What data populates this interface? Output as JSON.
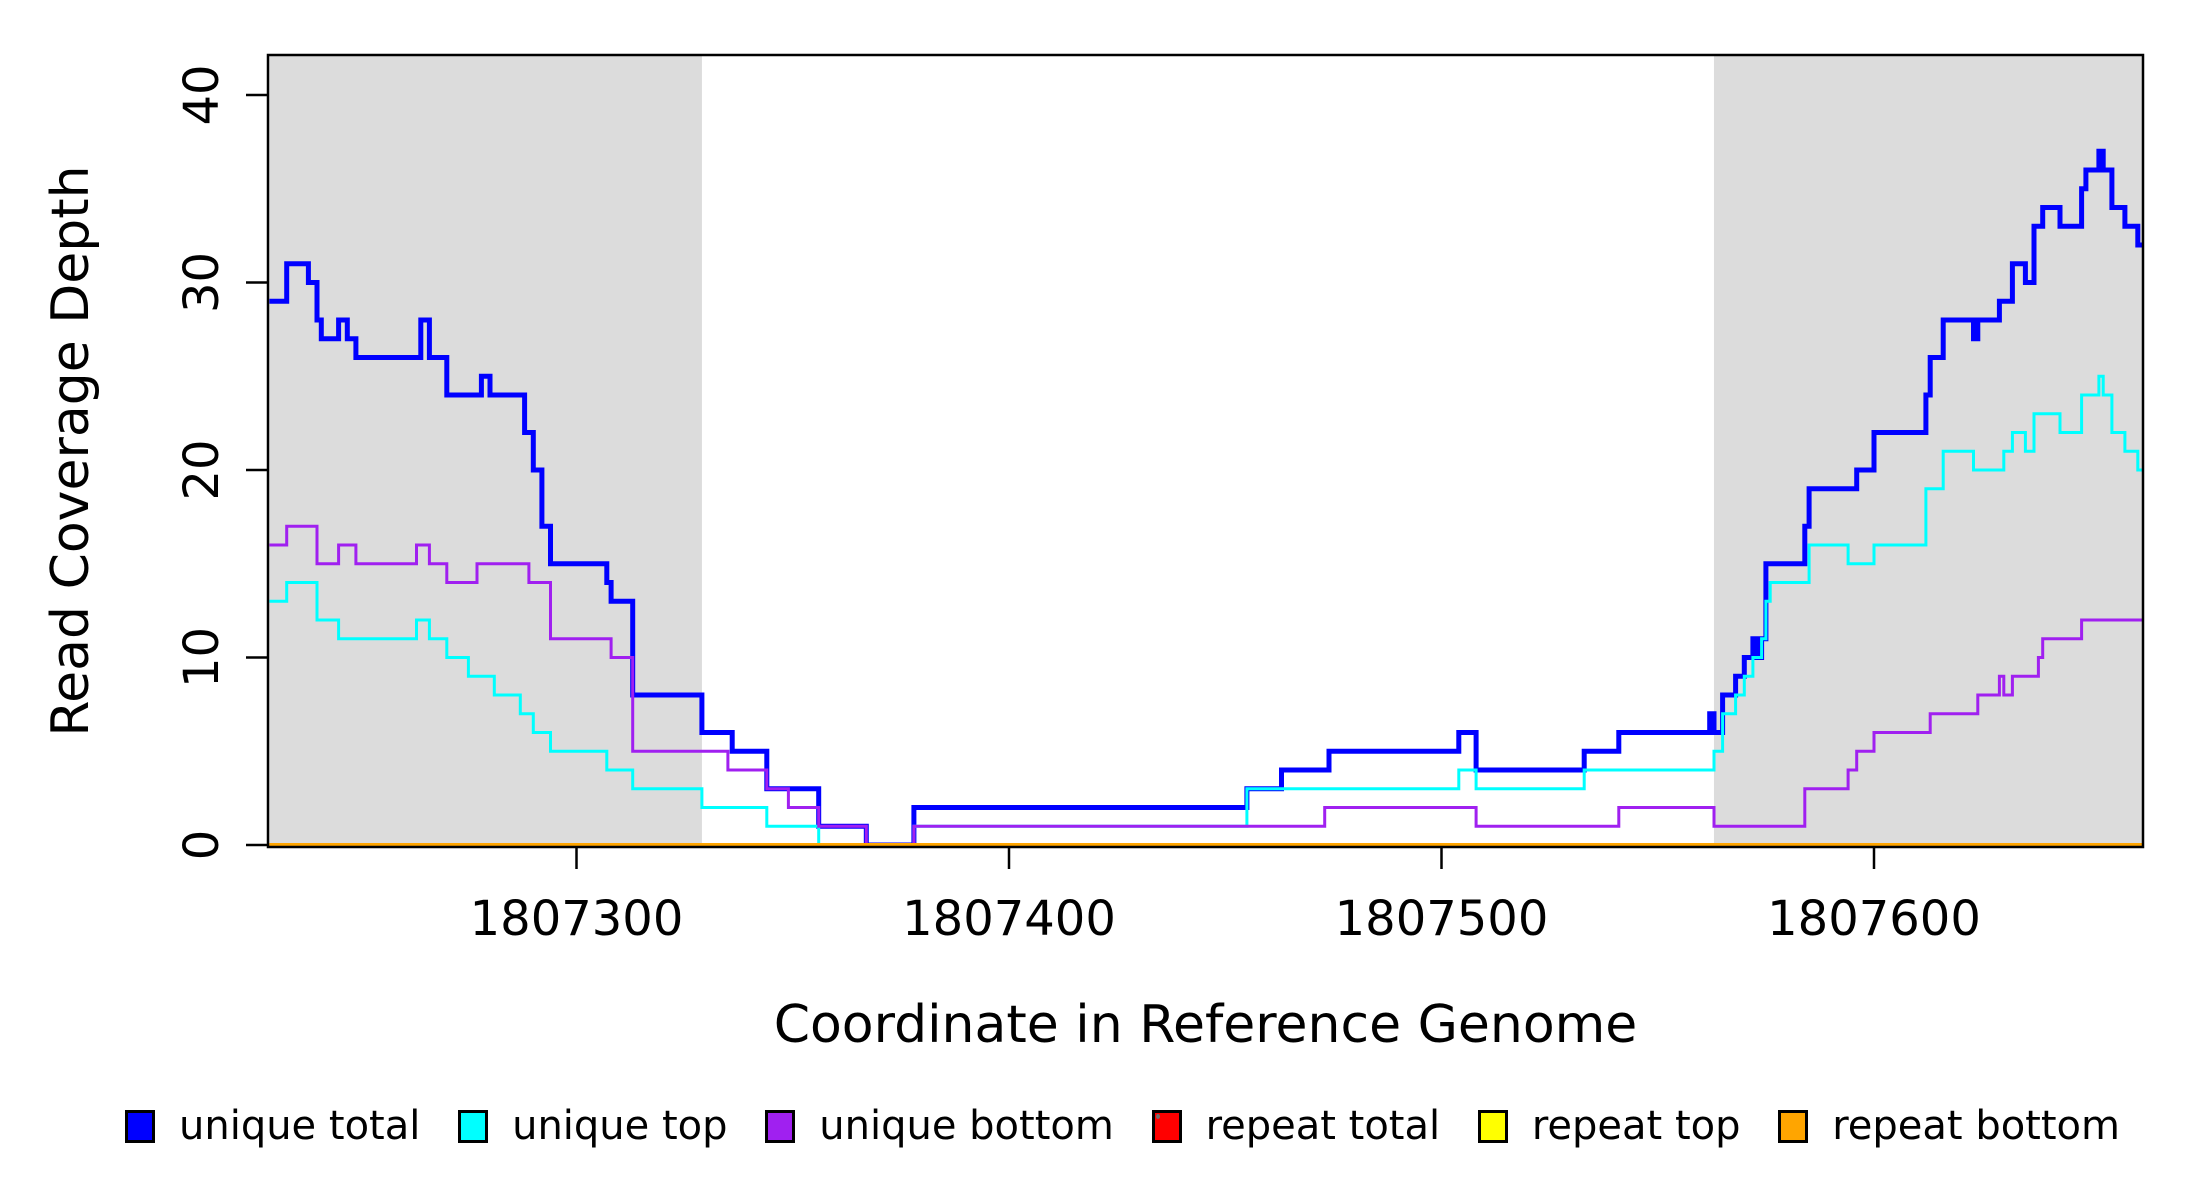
{
  "figure": {
    "x_label": "Coordinate in Reference Genome",
    "y_label": "Read Coverage Depth"
  },
  "axes": {
    "y_ticks": [
      "0",
      "10",
      "20",
      "30",
      "40"
    ],
    "x_ticks": [
      "1807300",
      "1807400",
      "1807500",
      "1807600"
    ]
  },
  "colors": {
    "background": "#FFFFFF",
    "shaded_region": "#DCDCDC",
    "axis": "#000000"
  },
  "legend": {
    "items": [
      {
        "label": "unique total",
        "color": "#0000FF"
      },
      {
        "label": "unique top",
        "color": "#00FFFF"
      },
      {
        "label": "unique bottom",
        "color": "#A020F0"
      },
      {
        "label": "repeat total",
        "color": "#FF0000"
      },
      {
        "label": "repeat top",
        "color": "#FFFF00"
      },
      {
        "label": "repeat bottom",
        "color": "#FFA500"
      }
    ]
  },
  "chart_data": {
    "type": "line",
    "subtype": "step",
    "title": "",
    "xlabel": "Coordinate in Reference Genome",
    "ylabel": "Read Coverage Depth",
    "xlim": [
      1807229,
      1807662
    ],
    "ylim": [
      0,
      40
    ],
    "x_tick_values": [
      1807300,
      1807400,
      1807500,
      1807600
    ],
    "y_tick_values": [
      0,
      10,
      20,
      30,
      40
    ],
    "grid": false,
    "legend_position": "bottom",
    "shaded_regions": [
      {
        "start": 1807229,
        "end": 1807329,
        "color": "#DCDCDC"
      },
      {
        "start": 1807563,
        "end": 1807662,
        "color": "#DCDCDC"
      }
    ],
    "series": [
      {
        "name": "unique total",
        "color": "#0000FF",
        "stroke_width": 5,
        "points": [
          [
            1807229,
            29
          ],
          [
            1807233,
            31
          ],
          [
            1807238,
            30
          ],
          [
            1807240,
            28
          ],
          [
            1807241,
            27
          ],
          [
            1807245,
            28
          ],
          [
            1807247,
            27
          ],
          [
            1807249,
            26
          ],
          [
            1807264,
            28
          ],
          [
            1807266,
            26
          ],
          [
            1807270,
            24
          ],
          [
            1807278,
            25
          ],
          [
            1807280,
            24
          ],
          [
            1807288,
            22
          ],
          [
            1807290,
            20
          ],
          [
            1807292,
            17
          ],
          [
            1807294,
            15
          ],
          [
            1807307,
            14
          ],
          [
            1807308,
            13
          ],
          [
            1807313,
            8
          ],
          [
            1807329,
            6
          ],
          [
            1807336,
            5
          ],
          [
            1807344,
            3
          ],
          [
            1807356,
            1
          ],
          [
            1807367,
            0
          ],
          [
            1807378,
            2
          ],
          [
            1807455,
            3
          ],
          [
            1807463,
            4
          ],
          [
            1807474,
            5
          ],
          [
            1807504,
            6
          ],
          [
            1807508,
            4
          ],
          [
            1807533,
            5
          ],
          [
            1807541,
            6
          ],
          [
            1807562,
            7
          ],
          [
            1807563,
            6
          ],
          [
            1807565,
            8
          ],
          [
            1807568,
            9
          ],
          [
            1807570,
            10
          ],
          [
            1807572,
            11
          ],
          [
            1807573,
            10
          ],
          [
            1807574,
            11
          ],
          [
            1807575,
            15
          ],
          [
            1807584,
            17
          ],
          [
            1807585,
            19
          ],
          [
            1807596,
            20
          ],
          [
            1807600,
            22
          ],
          [
            1807612,
            24
          ],
          [
            1807613,
            26
          ],
          [
            1807616,
            28
          ],
          [
            1807623,
            27
          ],
          [
            1807624,
            28
          ],
          [
            1807629,
            29
          ],
          [
            1807632,
            31
          ],
          [
            1807635,
            30
          ],
          [
            1807637,
            33
          ],
          [
            1807639,
            34
          ],
          [
            1807643,
            33
          ],
          [
            1807648,
            35
          ],
          [
            1807649,
            36
          ],
          [
            1807652,
            37
          ],
          [
            1807653,
            36
          ],
          [
            1807655,
            34
          ],
          [
            1807658,
            33
          ],
          [
            1807661,
            32
          ]
        ]
      },
      {
        "name": "unique top",
        "color": "#00FFFF",
        "stroke_width": 3,
        "points": [
          [
            1807229,
            13
          ],
          [
            1807233,
            14
          ],
          [
            1807240,
            12
          ],
          [
            1807245,
            11
          ],
          [
            1807263,
            12
          ],
          [
            1807266,
            11
          ],
          [
            1807270,
            10
          ],
          [
            1807275,
            9
          ],
          [
            1807281,
            8
          ],
          [
            1807287,
            7
          ],
          [
            1807290,
            6
          ],
          [
            1807294,
            5
          ],
          [
            1807307,
            4
          ],
          [
            1807313,
            3
          ],
          [
            1807329,
            2
          ],
          [
            1807344,
            1
          ],
          [
            1807356,
            0
          ],
          [
            1807378,
            1
          ],
          [
            1807455,
            3
          ],
          [
            1807504,
            4
          ],
          [
            1807508,
            3
          ],
          [
            1807533,
            4
          ],
          [
            1807563,
            5
          ],
          [
            1807565,
            7
          ],
          [
            1807568,
            8
          ],
          [
            1807570,
            9
          ],
          [
            1807572,
            10
          ],
          [
            1807574,
            11
          ],
          [
            1807575,
            13
          ],
          [
            1807576,
            14
          ],
          [
            1807585,
            16
          ],
          [
            1807594,
            15
          ],
          [
            1807600,
            16
          ],
          [
            1807612,
            19
          ],
          [
            1807616,
            21
          ],
          [
            1807623,
            20
          ],
          [
            1807630,
            21
          ],
          [
            1807632,
            22
          ],
          [
            1807635,
            21
          ],
          [
            1807637,
            23
          ],
          [
            1807643,
            22
          ],
          [
            1807648,
            24
          ],
          [
            1807652,
            25
          ],
          [
            1807653,
            24
          ],
          [
            1807655,
            22
          ],
          [
            1807658,
            21
          ],
          [
            1807661,
            20
          ]
        ]
      },
      {
        "name": "unique bottom",
        "color": "#A020F0",
        "stroke_width": 3,
        "points": [
          [
            1807229,
            16
          ],
          [
            1807233,
            17
          ],
          [
            1807240,
            15
          ],
          [
            1807245,
            16
          ],
          [
            1807249,
            15
          ],
          [
            1807263,
            16
          ],
          [
            1807266,
            15
          ],
          [
            1807270,
            14
          ],
          [
            1807277,
            15
          ],
          [
            1807289,
            14
          ],
          [
            1807294,
            11
          ],
          [
            1807308,
            10
          ],
          [
            1807313,
            5
          ],
          [
            1807335,
            4
          ],
          [
            1807344,
            3
          ],
          [
            1807349,
            2
          ],
          [
            1807356,
            1
          ],
          [
            1807367,
            0
          ],
          [
            1807378,
            1
          ],
          [
            1807473,
            2
          ],
          [
            1807508,
            1
          ],
          [
            1807541,
            2
          ],
          [
            1807563,
            1
          ],
          [
            1807584,
            3
          ],
          [
            1807594,
            4
          ],
          [
            1807596,
            5
          ],
          [
            1807600,
            6
          ],
          [
            1807613,
            7
          ],
          [
            1807624,
            8
          ],
          [
            1807629,
            9
          ],
          [
            1807630,
            8
          ],
          [
            1807632,
            9
          ],
          [
            1807638,
            10
          ],
          [
            1807639,
            11
          ],
          [
            1807648,
            12
          ]
        ]
      },
      {
        "name": "repeat total",
        "color": "#FF0000",
        "stroke_width": 3,
        "points": [
          [
            1807229,
            0
          ]
        ]
      },
      {
        "name": "repeat top",
        "color": "#FFFF00",
        "stroke_width": 3,
        "points": [
          [
            1807229,
            0
          ]
        ]
      },
      {
        "name": "repeat bottom",
        "color": "#FFA500",
        "stroke_width": 4,
        "points": [
          [
            1807229,
            0
          ]
        ]
      }
    ]
  }
}
